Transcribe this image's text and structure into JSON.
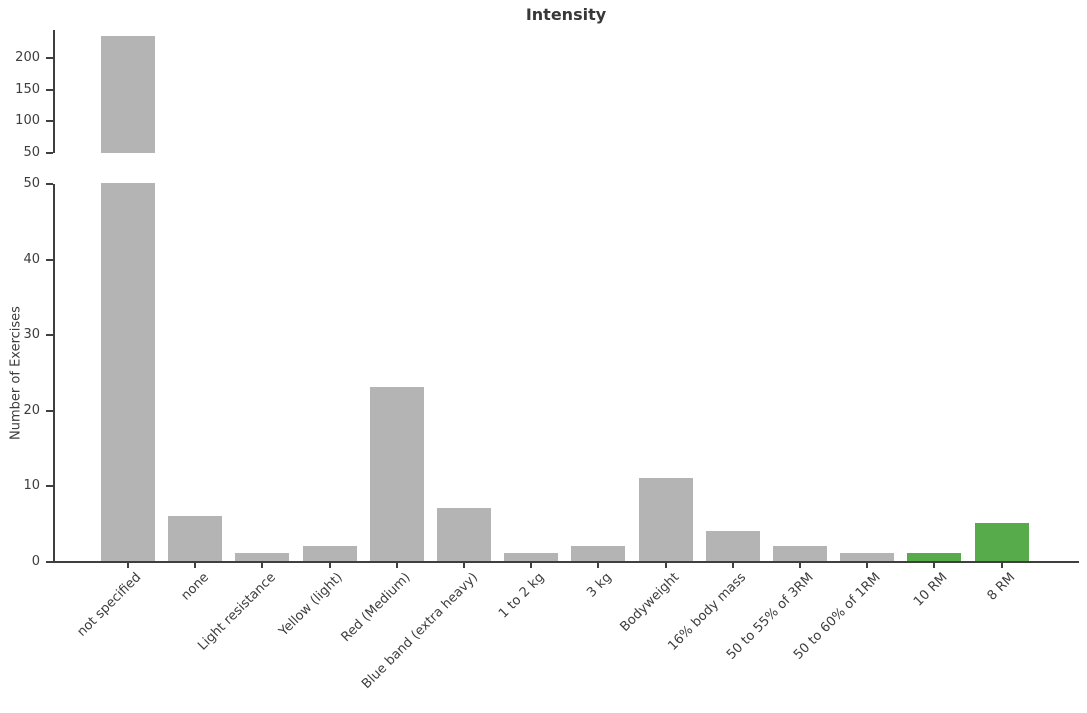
{
  "chart_data": {
    "type": "bar",
    "title": "Intensity",
    "ylabel": "Number of Exercises",
    "xlabel": "",
    "categories": [
      "not specified",
      "none",
      "Light resistance",
      "Yellow (light)",
      "Red (Medium)",
      "Blue band (extra heavy)",
      "1 to 2 kg",
      "3 kg",
      "Bodyweight",
      "16% body mass",
      "50 to 55% of 3RM",
      "50 to 60% of 1RM",
      "10 RM",
      "8 RM"
    ],
    "values": [
      235,
      6,
      1,
      2,
      23,
      7,
      1,
      2,
      11,
      4,
      2,
      1,
      1,
      5
    ],
    "bar_colors": {
      "default": "#b4b4b4",
      "highlight": "#58ab4a",
      "highlight_indices": [
        12,
        13
      ]
    },
    "axis": {
      "broken_y_axis": true,
      "top_panel": {
        "ylim": [
          50,
          244
        ],
        "ticks": [
          50,
          100,
          150,
          200
        ]
      },
      "bottom_panel": {
        "ylim": [
          0,
          50
        ],
        "ticks": [
          0,
          10,
          20,
          30,
          40,
          50
        ]
      },
      "spine_color": "#3f3f3f",
      "text_color": "#3d3d3d"
    },
    "grid": false,
    "legend": "none"
  }
}
